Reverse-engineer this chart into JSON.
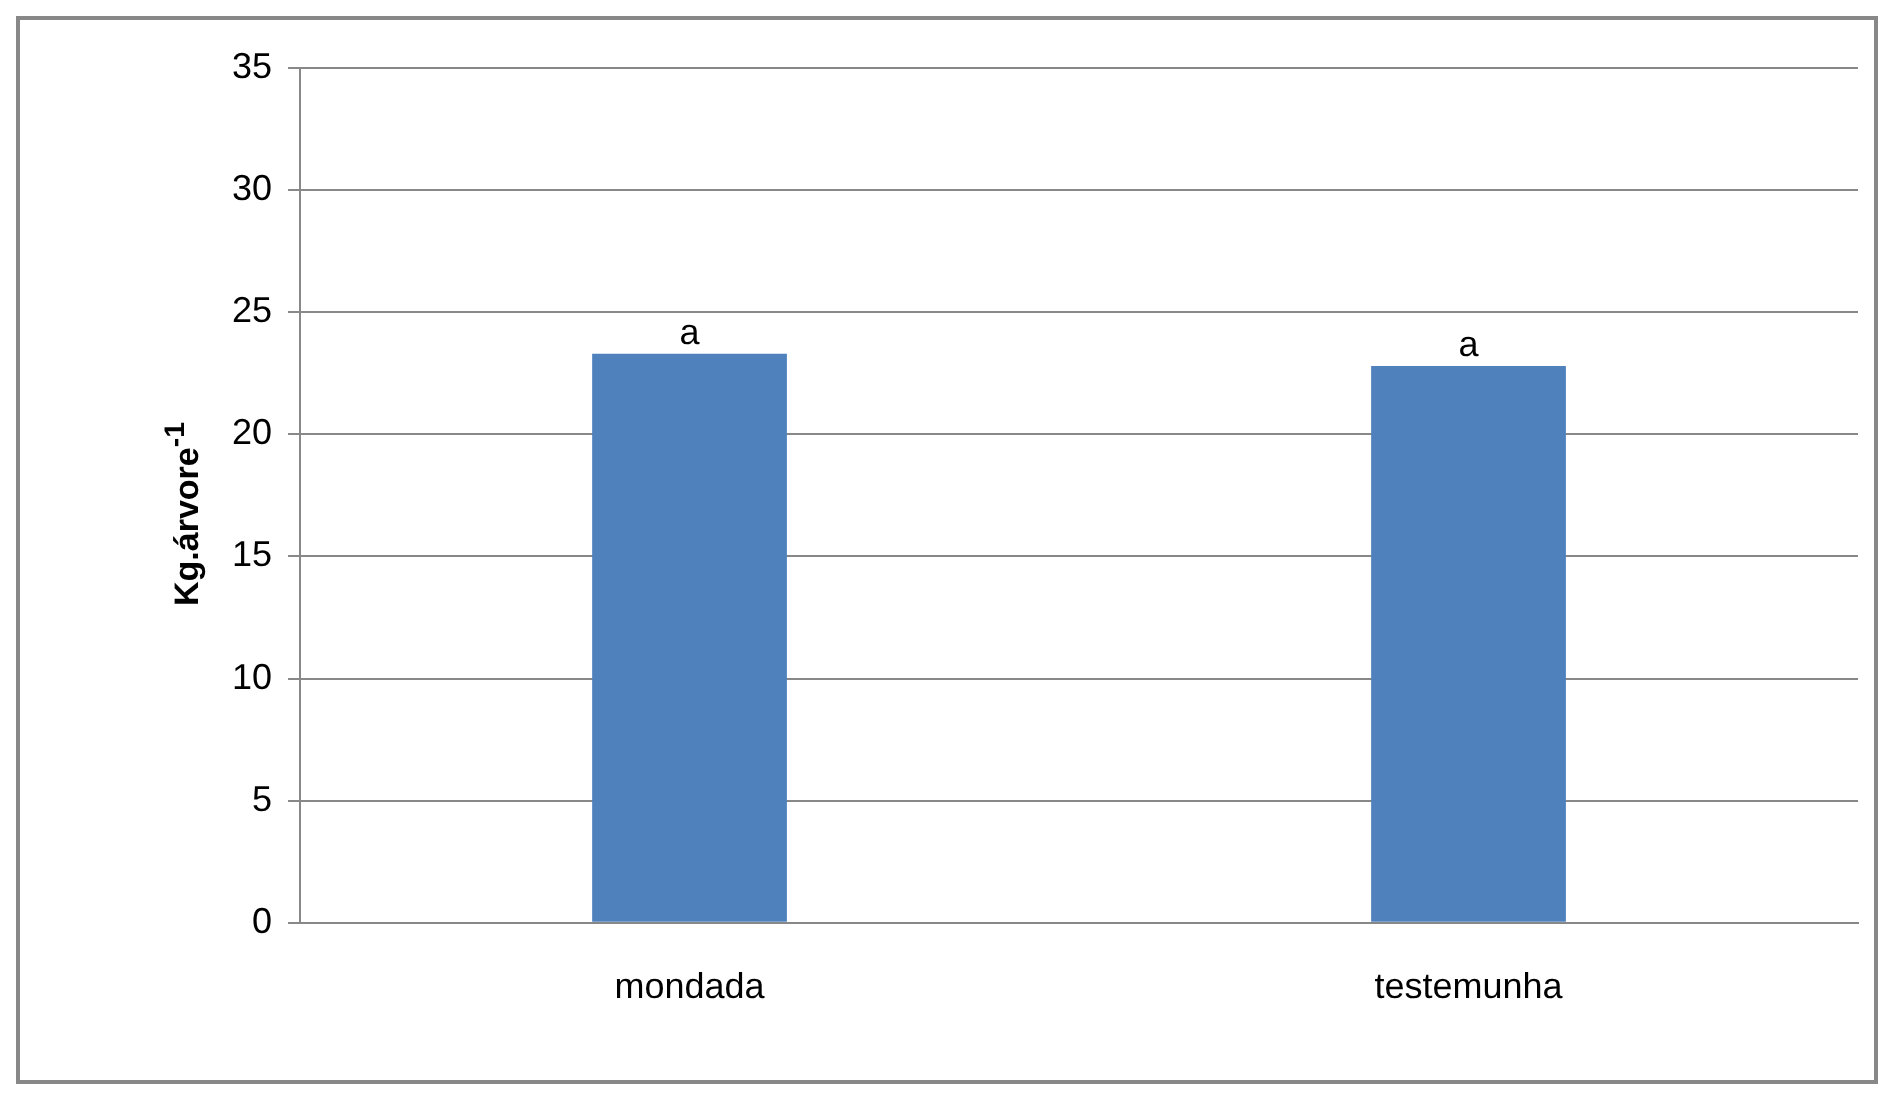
{
  "chart_data": {
    "type": "bar",
    "ylabel": "Kg.árvore$^{-1}$",
    "categories": [
      "mondada",
      "testemunha"
    ],
    "values": [
      23.3,
      22.8
    ],
    "color": "#4f81bd",
    "ylim": [
      0,
      35
    ],
    "yticks": [
      0,
      5,
      10,
      15,
      20,
      25,
      30,
      35
    ],
    "grid": "y",
    "legend": false,
    "annotations": [
      {
        "text": "a",
        "x": "mondada",
        "y": 23.3
      },
      {
        "text": "a",
        "x": "testemunha",
        "y": 22.8
      }
    ]
  }
}
